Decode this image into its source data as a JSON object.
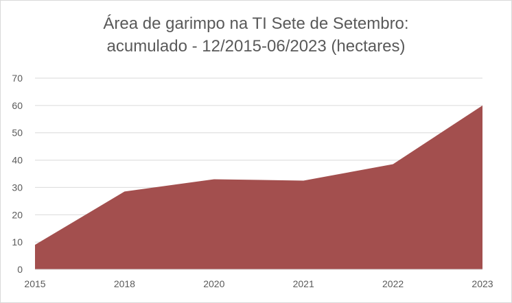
{
  "chart_data": {
    "type": "area",
    "title_line1": "Área de garimpo na TI Sete de Setembro:",
    "title_line2": "acumulado - 12/2015-06/2023 (hectares)",
    "categories": [
      "2015",
      "2018",
      "2020",
      "2021",
      "2022",
      "2023"
    ],
    "values": [
      9,
      28.5,
      33,
      32.5,
      38.5,
      60
    ],
    "ylim": [
      0,
      70
    ],
    "yticks": [
      0,
      10,
      20,
      30,
      40,
      50,
      60,
      70
    ],
    "grid": true,
    "legend": "none",
    "fill_color": "#a34f4e"
  }
}
